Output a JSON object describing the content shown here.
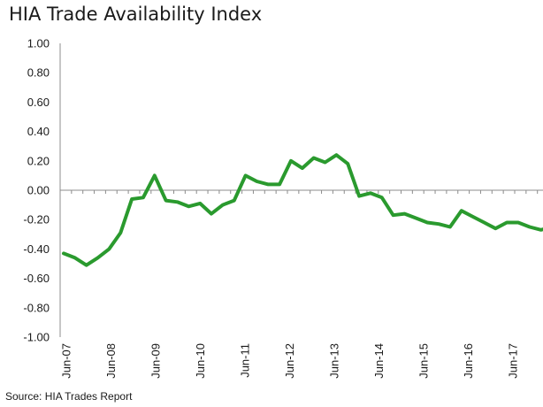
{
  "title": "HIA Trade Availability Index",
  "source": "Source: HIA Trades Report",
  "chart_data": {
    "type": "line",
    "title": "HIA Trade Availability Index",
    "xlabel": "",
    "ylabel": "",
    "ylim": [
      -1.0,
      1.0
    ],
    "y_ticks": [
      "1.00",
      "0.80",
      "0.60",
      "0.40",
      "0.20",
      "0.00",
      "-0.20",
      "-0.40",
      "-0.60",
      "-0.80",
      "-1.00"
    ],
    "x_ticks": [
      "Jun-07",
      "Jun-08",
      "Jun-09",
      "Jun-10",
      "Jun-11",
      "Jun-12",
      "Jun-13",
      "Jun-14",
      "Jun-15",
      "Jun-16",
      "Jun-17"
    ],
    "grid": false,
    "legend": "none",
    "line_color": "#2a9a2e",
    "series": [
      {
        "values": [
          -0.43,
          -0.46,
          -0.51,
          -0.46,
          -0.4,
          -0.29,
          -0.06,
          -0.05,
          0.1,
          -0.07,
          -0.08,
          -0.11,
          -0.09,
          -0.16,
          -0.1,
          -0.07,
          0.1,
          0.06,
          0.04,
          0.04,
          0.2,
          0.15,
          0.22,
          0.19,
          0.24,
          0.18,
          -0.04,
          -0.02,
          -0.05,
          -0.17,
          -0.16,
          -0.19,
          -0.22,
          -0.23,
          -0.25,
          -0.14,
          -0.18,
          -0.22,
          -0.26,
          -0.22,
          -0.22,
          -0.25,
          -0.27,
          -0.25
        ]
      }
    ]
  }
}
